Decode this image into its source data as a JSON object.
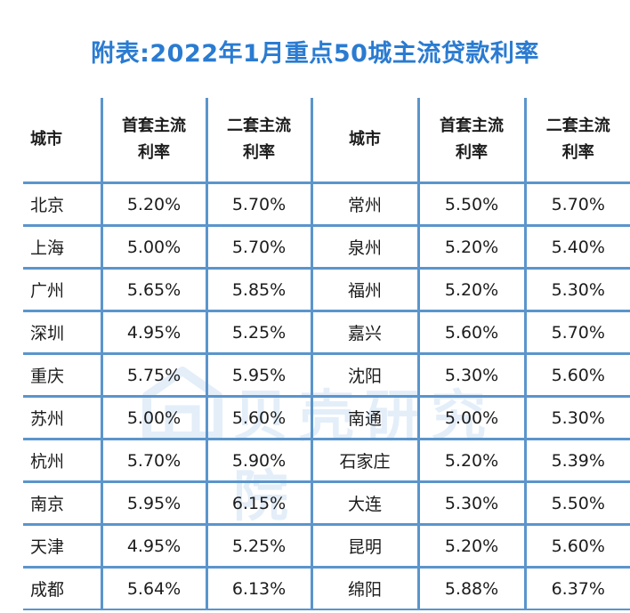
{
  "title": "附表:2022年1月重点50城主流贷款利率",
  "watermark": "贝壳研究院",
  "headers": {
    "city": "城市",
    "first_l1": "首套主流",
    "first_l2": "利率",
    "second_l1": "二套主流",
    "second_l2": "利率"
  },
  "rows": [
    {
      "city_a": "北京",
      "first_a": "5.20%",
      "second_a": "5.70%",
      "city_b": "常州",
      "first_b": "5.50%",
      "second_b": "5.70%"
    },
    {
      "city_a": "上海",
      "first_a": "5.00%",
      "second_a": "5.70%",
      "city_b": "泉州",
      "first_b": "5.20%",
      "second_b": "5.40%"
    },
    {
      "city_a": "广州",
      "first_a": "5.65%",
      "second_a": "5.85%",
      "city_b": "福州",
      "first_b": "5.20%",
      "second_b": "5.30%"
    },
    {
      "city_a": "深圳",
      "first_a": "4.95%",
      "second_a": "5.25%",
      "city_b": "嘉兴",
      "first_b": "5.60%",
      "second_b": "5.70%"
    },
    {
      "city_a": "重庆",
      "first_a": "5.75%",
      "second_a": "5.95%",
      "city_b": "沈阳",
      "first_b": "5.30%",
      "second_b": "5.60%"
    },
    {
      "city_a": "苏州",
      "first_a": "5.00%",
      "second_a": "5.60%",
      "city_b": "南通",
      "first_b": "5.00%",
      "second_b": "5.30%"
    },
    {
      "city_a": "杭州",
      "first_a": "5.70%",
      "second_a": "5.90%",
      "city_b": "石家庄",
      "first_b": "5.20%",
      "second_b": "5.39%"
    },
    {
      "city_a": "南京",
      "first_a": "5.95%",
      "second_a": "6.15%",
      "city_b": "大连",
      "first_b": "5.30%",
      "second_b": "5.50%"
    },
    {
      "city_a": "天津",
      "first_a": "4.95%",
      "second_a": "5.25%",
      "city_b": "昆明",
      "first_b": "5.20%",
      "second_b": "5.60%"
    },
    {
      "city_a": "成都",
      "first_a": "5.64%",
      "second_a": "6.13%",
      "city_b": "绵阳",
      "first_b": "5.88%",
      "second_b": "6.37%"
    }
  ],
  "colors": {
    "title": "#2a7bd1",
    "rule": "#5b95cc"
  }
}
